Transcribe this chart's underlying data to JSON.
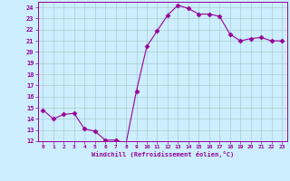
{
  "x": [
    0,
    1,
    2,
    3,
    4,
    5,
    6,
    7,
    8,
    9,
    10,
    11,
    12,
    13,
    14,
    15,
    16,
    17,
    18,
    19,
    20,
    21,
    22,
    23
  ],
  "y": [
    14.8,
    14.0,
    14.4,
    14.5,
    13.1,
    12.9,
    12.1,
    12.1,
    11.8,
    16.5,
    20.5,
    21.9,
    23.3,
    24.2,
    23.9,
    23.4,
    23.4,
    23.2,
    21.6,
    21.0,
    21.2,
    21.3,
    21.0,
    21.0
  ],
  "line_color": "#990099",
  "marker": "D",
  "marker_size": 2.5,
  "bg_color": "#cceeff",
  "grid_color": "#aacccc",
  "xlabel": "Windchill (Refroidissement éolien,°C)",
  "ylim": [
    12,
    24.5
  ],
  "xlim": [
    -0.5,
    23.5
  ],
  "yticks": [
    12,
    13,
    14,
    15,
    16,
    17,
    18,
    19,
    20,
    21,
    22,
    23,
    24
  ],
  "xticks": [
    0,
    1,
    2,
    3,
    4,
    5,
    6,
    7,
    8,
    9,
    10,
    11,
    12,
    13,
    14,
    15,
    16,
    17,
    18,
    19,
    20,
    21,
    22,
    23
  ],
  "axis_color": "#990099",
  "tick_color": "#990099",
  "label_color": "#990099"
}
